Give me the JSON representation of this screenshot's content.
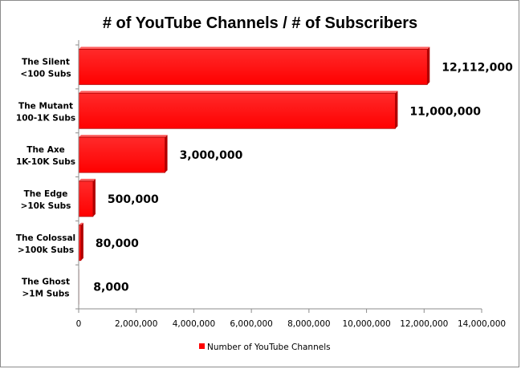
{
  "chart_data": {
    "type": "bar",
    "orientation": "horizontal",
    "title": "# of YouTube Channels / # of Subscribers",
    "categories": [
      [
        "The Silent",
        "<100 Subs"
      ],
      [
        "The Mutant",
        "100-1K Subs"
      ],
      [
        "The Axe",
        "1K-10K Subs"
      ],
      [
        "The Edge",
        ">10k Subs"
      ],
      [
        "The Colossal",
        ">100k Subs"
      ],
      [
        "The Ghost",
        ">1M Subs"
      ]
    ],
    "series": [
      {
        "name": "Number of YouTube Channels",
        "values": [
          12112000,
          11000000,
          3000000,
          500000,
          80000,
          8000
        ],
        "data_labels": [
          "12,112,000",
          "11,000,000",
          "3,000,000",
          "500,000",
          "80,000",
          "8,000"
        ]
      }
    ],
    "xlim": [
      0,
      14000000
    ],
    "x_ticks": [
      0,
      2000000,
      4000000,
      6000000,
      8000000,
      10000000,
      12000000,
      14000000
    ],
    "x_tick_labels": [
      "0",
      "2,000,000",
      "4,000,000",
      "6,000,000",
      "8,000,000",
      "10,000,000",
      "12,000,000",
      "14,000,000"
    ],
    "grid": false,
    "legend_position": "bottom",
    "colors": {
      "bar": "#ff0000",
      "bar_dark": "#b00000",
      "axis": "#8c8c8c"
    }
  }
}
